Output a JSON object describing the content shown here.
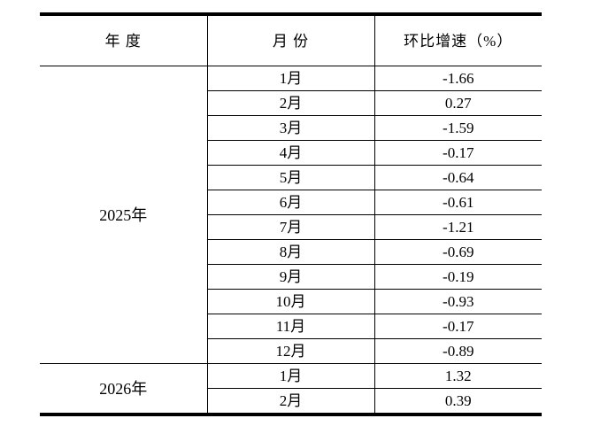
{
  "colors": {
    "background": "#ffffff",
    "text": "#000000",
    "border": "#000000"
  },
  "table": {
    "headers": {
      "year": "年 度",
      "month": "月 份",
      "growth": "环比增速（%）"
    },
    "groups": [
      {
        "year": "2025年",
        "rows": [
          {
            "month": "1月",
            "value": "-1.66"
          },
          {
            "month": "2月",
            "value": "0.27"
          },
          {
            "month": "3月",
            "value": "-1.59"
          },
          {
            "month": "4月",
            "value": "-0.17"
          },
          {
            "month": "5月",
            "value": "-0.64"
          },
          {
            "month": "6月",
            "value": "-0.61"
          },
          {
            "month": "7月",
            "value": "-1.21"
          },
          {
            "month": "8月",
            "value": "-0.69"
          },
          {
            "month": "9月",
            "value": "-0.19"
          },
          {
            "month": "10月",
            "value": "-0.93"
          },
          {
            "month": "11月",
            "value": "-0.17"
          },
          {
            "month": "12月",
            "value": "-0.89"
          }
        ]
      },
      {
        "year": "2026年",
        "rows": [
          {
            "month": "1月",
            "value": "1.32"
          },
          {
            "month": "2月",
            "value": "0.39"
          }
        ]
      }
    ]
  }
}
